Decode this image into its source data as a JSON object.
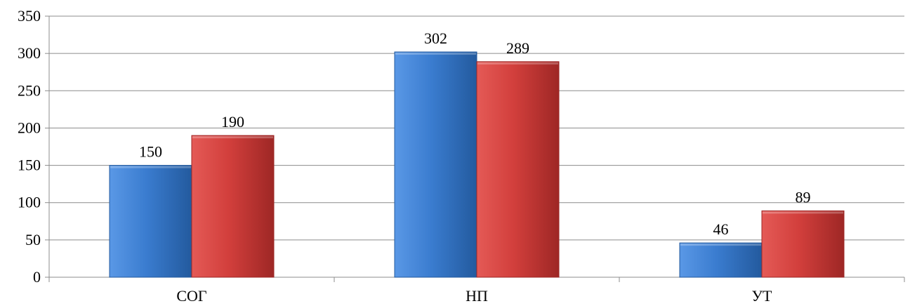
{
  "chart_data": {
    "type": "bar",
    "categories": [
      "СОГ",
      "НП",
      "УТ"
    ],
    "series": [
      {
        "values": [
          150,
          302,
          46
        ]
      },
      {
        "values": [
          190,
          289,
          89
        ]
      }
    ],
    "ylim": [
      0,
      350
    ],
    "yticks": [
      0,
      50,
      100,
      150,
      200,
      250,
      300,
      350
    ],
    "grid": true,
    "legend": "none",
    "data_labels": true
  },
  "colors": {
    "series": [
      "#3a7ccf",
      "#d23f3c"
    ],
    "series_dark": [
      "#235a9e",
      "#9e2725"
    ],
    "series_light": [
      "#5a98e6",
      "#e45a56"
    ],
    "grid": "#8c8c8c",
    "axis": "#8c8c8c"
  }
}
